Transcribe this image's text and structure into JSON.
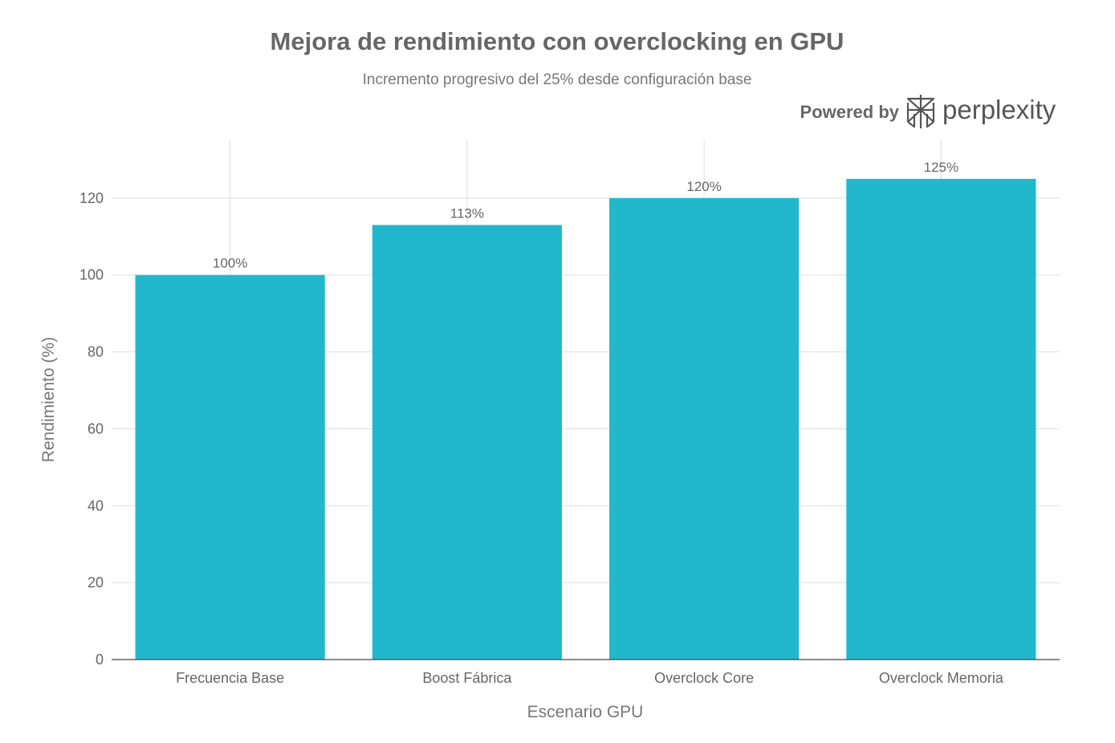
{
  "chart_data": {
    "type": "bar",
    "title": "Mejora de rendimiento con overclocking en GPU",
    "subtitle": "Incremento progresivo del 25% desde configuración base",
    "xlabel": "Escenario GPU",
    "ylabel": "Rendimiento (%)",
    "categories": [
      "Frecuencia Base",
      "Boost Fábrica",
      "Overclock Core",
      "Overclock Memoria"
    ],
    "values": [
      100,
      113,
      120,
      125
    ],
    "data_labels": [
      "100%",
      "113%",
      "120%",
      "125%"
    ],
    "ylim": [
      0,
      135
    ],
    "yticks": [
      0,
      20,
      40,
      60,
      80,
      100,
      120
    ],
    "grid": true,
    "legend": "none",
    "bar_color": "#21b8cd"
  },
  "branding": {
    "powered_by": "Powered by",
    "name": "perplexity",
    "icon": "perplexity-logo-icon"
  }
}
